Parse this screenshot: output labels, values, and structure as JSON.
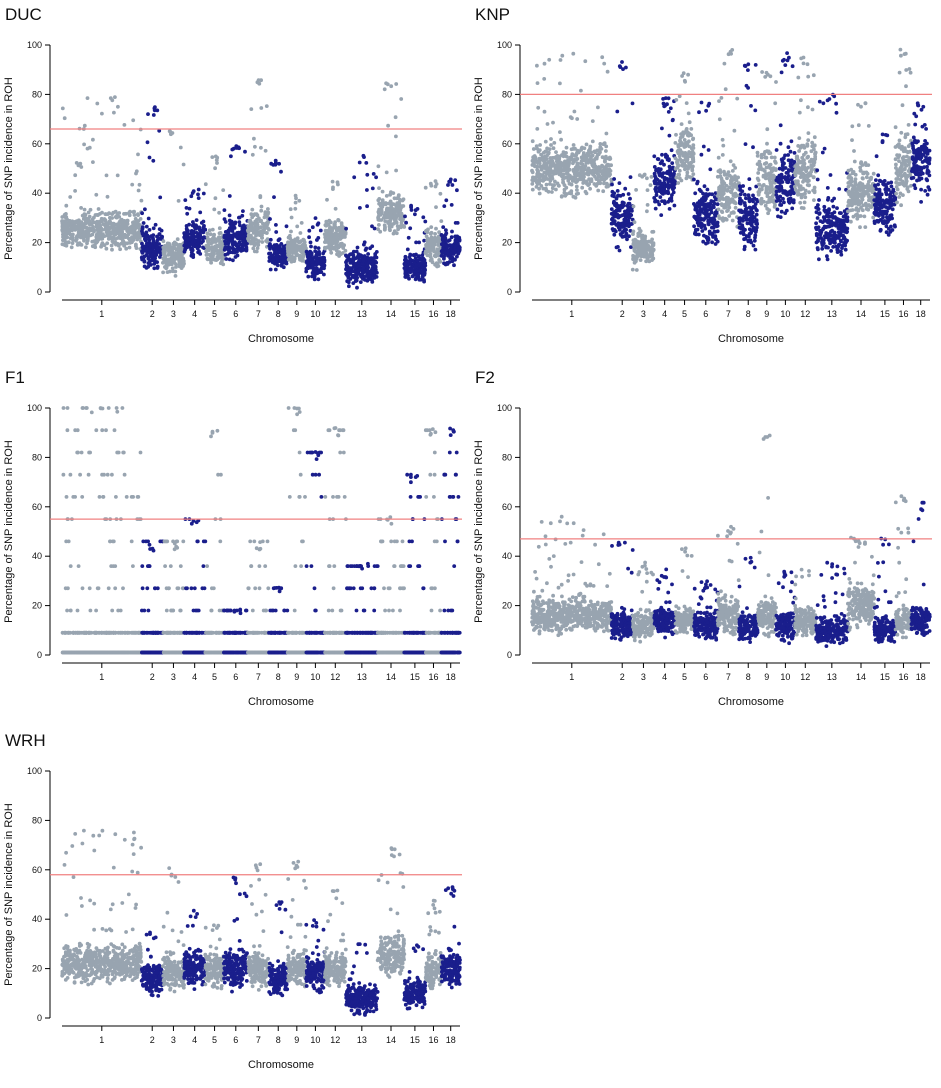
{
  "colors": {
    "odd_chromosome": "#98a4b0",
    "even_chromosome": "#1a1e8c",
    "threshold_line": "#f08080"
  },
  "chart_data": [
    {
      "type": "scatter",
      "title": "DUC",
      "xlabel": "Chromosome",
      "ylabel": "Percentage of SNP incidence in ROH",
      "ylim": [
        0,
        100
      ],
      "yticks": [
        0,
        20,
        40,
        60,
        80,
        100
      ],
      "chromosomes": [
        "1",
        "2",
        "3",
        "4",
        "5",
        "6",
        "7",
        "8",
        "9",
        "10",
        "12",
        "13",
        "14",
        "15",
        "16",
        "18"
      ],
      "threshold": 66,
      "series": [
        {
          "name": "1",
          "base": 25,
          "spread": 10,
          "max": 80
        },
        {
          "name": "2",
          "base": 18,
          "spread": 12,
          "max": 75
        },
        {
          "name": "3",
          "base": 15,
          "spread": 10,
          "max": 67
        },
        {
          "name": "4",
          "base": 22,
          "spread": 10,
          "max": 42
        },
        {
          "name": "5",
          "base": 18,
          "spread": 10,
          "max": 55
        },
        {
          "name": "6",
          "base": 22,
          "spread": 12,
          "max": 61
        },
        {
          "name": "7",
          "base": 26,
          "spread": 12,
          "max": 86
        },
        {
          "name": "8",
          "base": 15,
          "spread": 8,
          "max": 54
        },
        {
          "name": "9",
          "base": 17,
          "spread": 8,
          "max": 40
        },
        {
          "name": "10",
          "base": 12,
          "spread": 8,
          "max": 30
        },
        {
          "name": "12",
          "base": 22,
          "spread": 10,
          "max": 45
        },
        {
          "name": "13",
          "base": 10,
          "spread": 10,
          "max": 56
        },
        {
          "name": "14",
          "base": 32,
          "spread": 12,
          "max": 85
        },
        {
          "name": "15",
          "base": 10,
          "spread": 8,
          "max": 35
        },
        {
          "name": "16",
          "base": 18,
          "spread": 10,
          "max": 45
        },
        {
          "name": "18",
          "base": 18,
          "spread": 10,
          "max": 46
        }
      ]
    },
    {
      "type": "scatter",
      "title": "KNP",
      "xlabel": "Chromosome",
      "ylabel": "Percentage of SNP incidence in ROH",
      "ylim": [
        0,
        100
      ],
      "yticks": [
        0,
        20,
        40,
        60,
        80,
        100
      ],
      "chromosomes": [
        "1",
        "2",
        "3",
        "4",
        "5",
        "6",
        "7",
        "8",
        "9",
        "10",
        "12",
        "13",
        "14",
        "15",
        "16",
        "18"
      ],
      "threshold": 80,
      "series": [
        {
          "name": "1",
          "base": 50,
          "spread": 14,
          "max": 97
        },
        {
          "name": "2",
          "base": 30,
          "spread": 18,
          "max": 94
        },
        {
          "name": "3",
          "base": 18,
          "spread": 10,
          "max": 50
        },
        {
          "name": "4",
          "base": 45,
          "spread": 16,
          "max": 79
        },
        {
          "name": "5",
          "base": 55,
          "spread": 18,
          "max": 89
        },
        {
          "name": "6",
          "base": 30,
          "spread": 16,
          "max": 77
        },
        {
          "name": "7",
          "base": 40,
          "spread": 16,
          "max": 99
        },
        {
          "name": "8",
          "base": 30,
          "spread": 18,
          "max": 93
        },
        {
          "name": "9",
          "base": 45,
          "spread": 18,
          "max": 91
        },
        {
          "name": "10",
          "base": 45,
          "spread": 20,
          "max": 97
        },
        {
          "name": "12",
          "base": 50,
          "spread": 20,
          "max": 96
        },
        {
          "name": "13",
          "base": 25,
          "spread": 16,
          "max": 80
        },
        {
          "name": "14",
          "base": 40,
          "spread": 16,
          "max": 78
        },
        {
          "name": "15",
          "base": 35,
          "spread": 16,
          "max": 65
        },
        {
          "name": "16",
          "base": 50,
          "spread": 18,
          "max": 99
        },
        {
          "name": "18",
          "base": 52,
          "spread": 18,
          "max": 78
        }
      ]
    },
    {
      "type": "scatter",
      "title": "F1",
      "xlabel": "Chromosome",
      "ylabel": "Percentage of SNP incidence in ROH",
      "ylim": [
        0,
        100
      ],
      "yticks": [
        0,
        20,
        40,
        60,
        80,
        100
      ],
      "chromosomes": [
        "1",
        "2",
        "3",
        "4",
        "5",
        "6",
        "7",
        "8",
        "9",
        "10",
        "12",
        "13",
        "14",
        "15",
        "16",
        "18"
      ],
      "threshold": 55,
      "levels": [
        1,
        9,
        18,
        27,
        36,
        46,
        55,
        64,
        73,
        82,
        91,
        100
      ],
      "series": [
        {
          "name": "1",
          "base": 10,
          "spread": 0,
          "max": 100
        },
        {
          "name": "2",
          "base": 10,
          "spread": 0,
          "max": 46
        },
        {
          "name": "3",
          "base": 10,
          "spread": 0,
          "max": 46
        },
        {
          "name": "4",
          "base": 10,
          "spread": 0,
          "max": 56
        },
        {
          "name": "5",
          "base": 10,
          "spread": 0,
          "max": 92
        },
        {
          "name": "6",
          "base": 10,
          "spread": 0,
          "max": 19
        },
        {
          "name": "7",
          "base": 10,
          "spread": 0,
          "max": 46
        },
        {
          "name": "8",
          "base": 10,
          "spread": 0,
          "max": 28
        },
        {
          "name": "9",
          "base": 10,
          "spread": 0,
          "max": 100
        },
        {
          "name": "10",
          "base": 10,
          "spread": 0,
          "max": 83
        },
        {
          "name": "12",
          "base": 10,
          "spread": 0,
          "max": 92
        },
        {
          "name": "13",
          "base": 10,
          "spread": 0,
          "max": 37
        },
        {
          "name": "14",
          "base": 10,
          "spread": 0,
          "max": 56
        },
        {
          "name": "15",
          "base": 10,
          "spread": 0,
          "max": 73
        },
        {
          "name": "16",
          "base": 10,
          "spread": 0,
          "max": 92
        },
        {
          "name": "18",
          "base": 10,
          "spread": 0,
          "max": 92
        }
      ]
    },
    {
      "type": "scatter",
      "title": "F2",
      "xlabel": "Chromosome",
      "ylabel": "Percentage of SNP incidence in ROH",
      "ylim": [
        0,
        100
      ],
      "yticks": [
        0,
        20,
        40,
        60,
        80,
        100
      ],
      "chromosomes": [
        "1",
        "2",
        "3",
        "4",
        "5",
        "6",
        "7",
        "8",
        "9",
        "10",
        "12",
        "13",
        "14",
        "15",
        "16",
        "18"
      ],
      "threshold": 47,
      "series": [
        {
          "name": "1",
          "base": 16,
          "spread": 10,
          "max": 56
        },
        {
          "name": "2",
          "base": 12,
          "spread": 8,
          "max": 47
        },
        {
          "name": "3",
          "base": 12,
          "spread": 8,
          "max": 38
        },
        {
          "name": "4",
          "base": 14,
          "spread": 8,
          "max": 35
        },
        {
          "name": "5",
          "base": 14,
          "spread": 8,
          "max": 44
        },
        {
          "name": "6",
          "base": 12,
          "spread": 8,
          "max": 30
        },
        {
          "name": "7",
          "base": 16,
          "spread": 10,
          "max": 52
        },
        {
          "name": "8",
          "base": 12,
          "spread": 8,
          "max": 40
        },
        {
          "name": "9",
          "base": 16,
          "spread": 10,
          "max": 89
        },
        {
          "name": "10",
          "base": 12,
          "spread": 8,
          "max": 35
        },
        {
          "name": "12",
          "base": 14,
          "spread": 8,
          "max": 35
        },
        {
          "name": "13",
          "base": 10,
          "spread": 8,
          "max": 38
        },
        {
          "name": "14",
          "base": 20,
          "spread": 12,
          "max": 49
        },
        {
          "name": "15",
          "base": 10,
          "spread": 8,
          "max": 48
        },
        {
          "name": "16",
          "base": 14,
          "spread": 8,
          "max": 66
        },
        {
          "name": "18",
          "base": 14,
          "spread": 8,
          "max": 62
        }
      ]
    },
    {
      "type": "scatter",
      "title": "WRH",
      "xlabel": "Chromosome",
      "ylabel": "Percentage of SNP incidence in ROH",
      "ylim": [
        0,
        100
      ],
      "yticks": [
        0,
        20,
        40,
        60,
        80,
        100
      ],
      "chromosomes": [
        "1",
        "2",
        "3",
        "4",
        "5",
        "6",
        "7",
        "8",
        "9",
        "10",
        "12",
        "13",
        "14",
        "15",
        "16",
        "18"
      ],
      "threshold": 58,
      "series": [
        {
          "name": "1",
          "base": 22,
          "spread": 10,
          "max": 76
        },
        {
          "name": "2",
          "base": 16,
          "spread": 10,
          "max": 35
        },
        {
          "name": "3",
          "base": 18,
          "spread": 10,
          "max": 61
        },
        {
          "name": "4",
          "base": 20,
          "spread": 10,
          "max": 44
        },
        {
          "name": "5",
          "base": 20,
          "spread": 10,
          "max": 38
        },
        {
          "name": "6",
          "base": 20,
          "spread": 10,
          "max": 57
        },
        {
          "name": "7",
          "base": 20,
          "spread": 10,
          "max": 63
        },
        {
          "name": "8",
          "base": 16,
          "spread": 10,
          "max": 48
        },
        {
          "name": "9",
          "base": 20,
          "spread": 10,
          "max": 64
        },
        {
          "name": "10",
          "base": 18,
          "spread": 10,
          "max": 40
        },
        {
          "name": "12",
          "base": 20,
          "spread": 10,
          "max": 52
        },
        {
          "name": "13",
          "base": 8,
          "spread": 8,
          "max": 30
        },
        {
          "name": "14",
          "base": 26,
          "spread": 12,
          "max": 69
        },
        {
          "name": "15",
          "base": 10,
          "spread": 8,
          "max": 30
        },
        {
          "name": "16",
          "base": 20,
          "spread": 10,
          "max": 48
        },
        {
          "name": "18",
          "base": 20,
          "spread": 10,
          "max": 54
        }
      ]
    }
  ]
}
